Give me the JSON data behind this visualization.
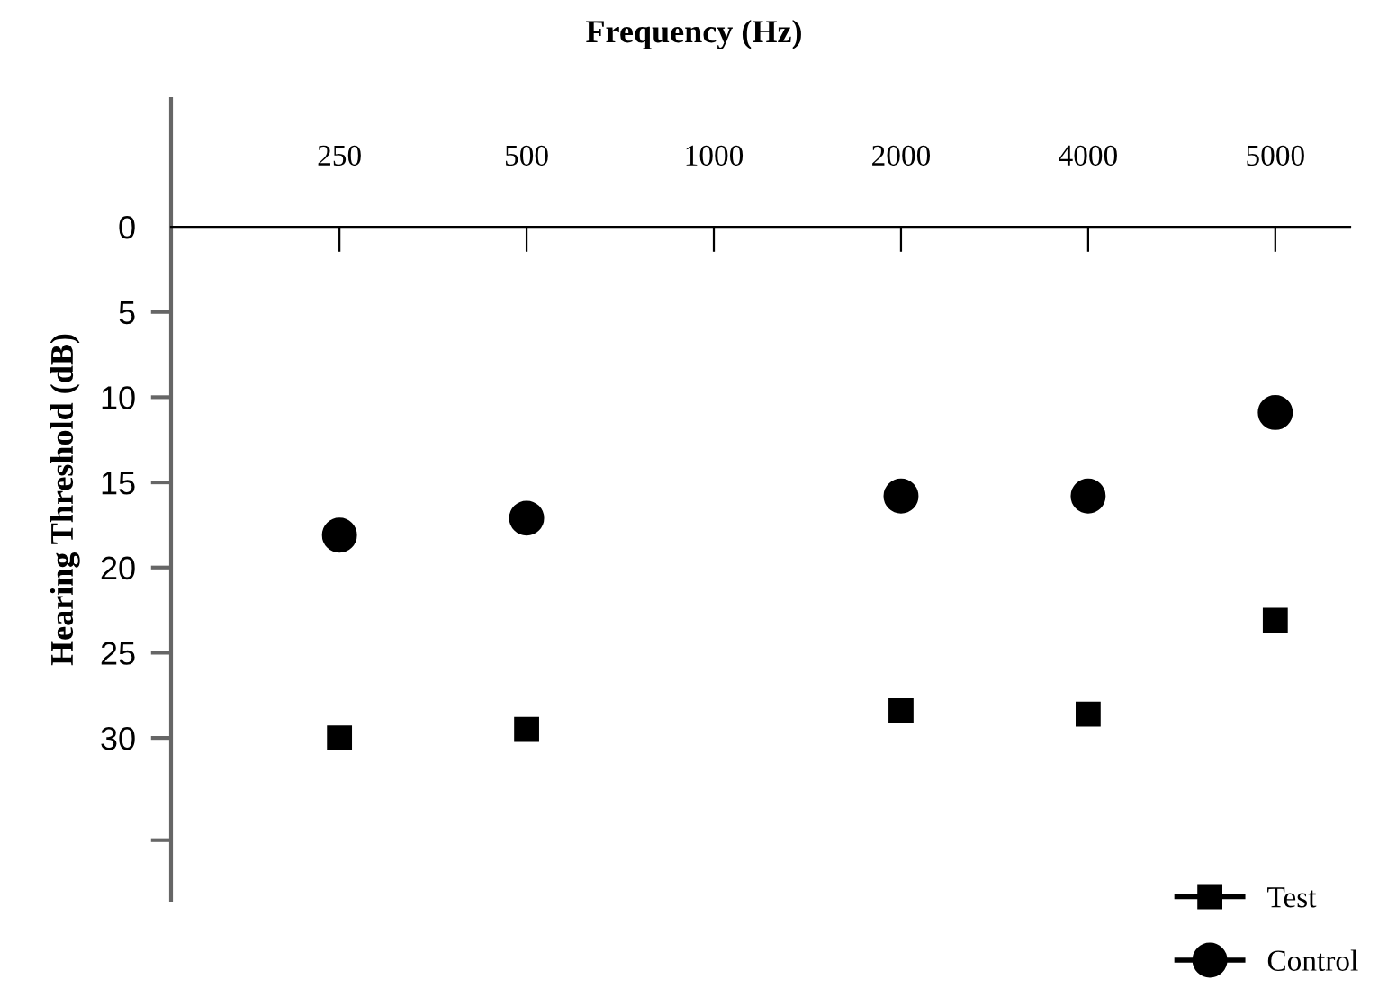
{
  "chart_data": {
    "type": "scatter",
    "title": "Frequency (Hz)",
    "ylabel": "Hearing Threshold (dB)",
    "categories": [
      "250",
      "500",
      "1000",
      "2000",
      "4000",
      "5000"
    ],
    "series": [
      {
        "name": "Test",
        "color": "#000000",
        "marker": "square",
        "values": [
          30,
          29.5,
          null,
          28.4,
          28.6,
          23.1
        ]
      },
      {
        "name": "Control",
        "color": "#000000",
        "marker": "circle",
        "values": [
          18.1,
          17.1,
          null,
          15.8,
          15.8,
          10.9
        ]
      }
    ],
    "ylim": [
      39.5,
      -7.5
    ],
    "yticks": [
      0,
      5,
      10,
      15,
      20,
      25,
      30,
      {
        "value": 36,
        "label": null
      }
    ],
    "grid": false,
    "legend": "bottom right"
  }
}
